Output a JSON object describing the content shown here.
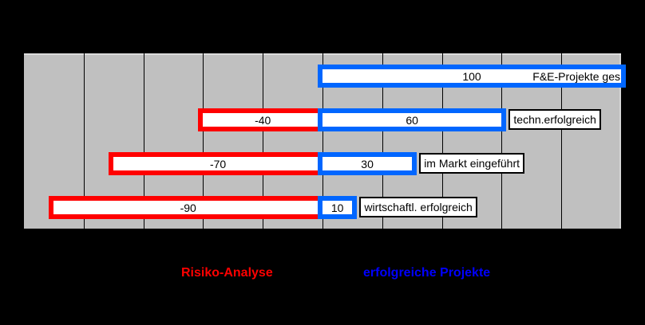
{
  "background_color": "#000000",
  "plot": {
    "background_color": "#C0C0C0",
    "gridline_color": "#000000"
  },
  "colors": {
    "risk_bar_border": "#FF0000",
    "success_bar_border": "#0066FF",
    "bar_fill": "#FFFFFF",
    "legend_risk_text": "#FF0000",
    "legend_success_text": "#0000FF",
    "label_box_bg": "#FFFFFF",
    "label_box_border": "#000000",
    "value_text": "#000000"
  },
  "legend": {
    "risk_label": "Risiko-Analyse",
    "success_label": "erfolgreiche Projekte",
    "position": "bottom"
  },
  "chart_data": {
    "type": "bar",
    "orientation": "horizontal",
    "title": "",
    "xlabel": "",
    "ylabel": "",
    "xlim": [
      -100,
      100
    ],
    "gridline_step": 20,
    "grid": true,
    "axis_tick_labels_visible": false,
    "categories": [
      "F&E-Projekte ges",
      "techn.erfolgreich",
      "im Markt eingeführt",
      "wirtschaftl. erfolgreich"
    ],
    "series": [
      {
        "name": "Risiko-Analyse",
        "color": "#FF0000",
        "values": [
          null,
          -40,
          -70,
          -90
        ]
      },
      {
        "name": "erfolgreiche Projekte",
        "color": "#0066FF",
        "values": [
          100,
          60,
          30,
          10
        ]
      }
    ],
    "category_label_inside_bar": [
      true,
      false,
      false,
      false
    ],
    "value_labels_visible": true
  }
}
